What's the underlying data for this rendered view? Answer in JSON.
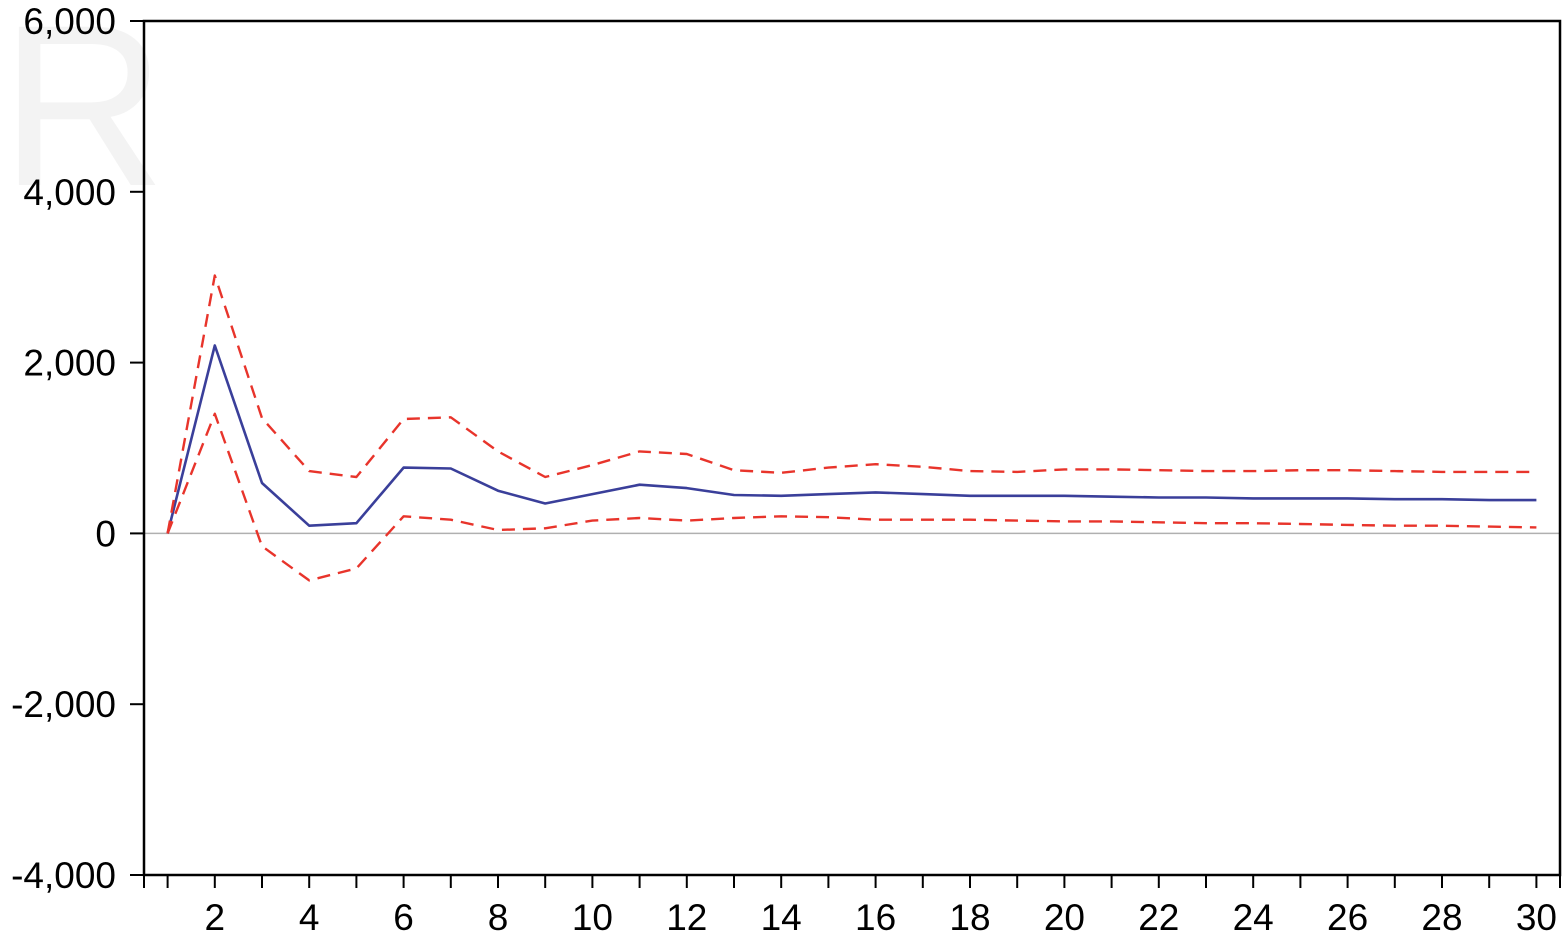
{
  "chart_data": {
    "type": "line",
    "title": "",
    "xlabel": "",
    "ylabel": "",
    "x": [
      1,
      2,
      3,
      4,
      5,
      6,
      7,
      8,
      9,
      10,
      11,
      12,
      13,
      14,
      15,
      16,
      17,
      18,
      19,
      20,
      21,
      22,
      23,
      24,
      25,
      26,
      27,
      28,
      29,
      30
    ],
    "xlim": [
      0.5,
      30.5
    ],
    "ylim": [
      -4000,
      6000
    ],
    "x_tick_labels": [
      "2",
      "4",
      "6",
      "8",
      "10",
      "12",
      "14",
      "16",
      "18",
      "20",
      "22",
      "24",
      "26",
      "28",
      "30"
    ],
    "y_tick_labels": [
      "6,000",
      "4,000",
      "2,000",
      "0",
      "-2,000",
      "-4,000"
    ],
    "y_ticks": [
      6000,
      4000,
      2000,
      0,
      -2000,
      -4000
    ],
    "zero_line": true,
    "grid": false,
    "legend": "none",
    "colors": {
      "response": "#3a3f9a",
      "bands": "#e8342b",
      "zero_line": "#b0b0b0",
      "frame": "#000000"
    },
    "series": [
      {
        "style": "solid",
        "values": [
          0,
          2200,
          590,
          90,
          120,
          770,
          760,
          500,
          350,
          460,
          570,
          530,
          450,
          440,
          460,
          480,
          460,
          440,
          440,
          440,
          430,
          420,
          420,
          410,
          410,
          410,
          400,
          400,
          390,
          390
        ]
      },
      {
        "style": "dashed",
        "values": [
          0,
          3020,
          1350,
          730,
          660,
          1340,
          1360,
          960,
          660,
          800,
          960,
          930,
          740,
          710,
          770,
          810,
          780,
          730,
          720,
          750,
          750,
          740,
          730,
          730,
          740,
          740,
          730,
          720,
          720,
          720
        ]
      },
      {
        "style": "dashed",
        "values": [
          0,
          1400,
          -150,
          -550,
          -410,
          200,
          160,
          40,
          60,
          150,
          180,
          150,
          180,
          200,
          190,
          160,
          160,
          160,
          150,
          140,
          140,
          130,
          120,
          120,
          110,
          100,
          90,
          90,
          80,
          70
        ]
      }
    ]
  }
}
